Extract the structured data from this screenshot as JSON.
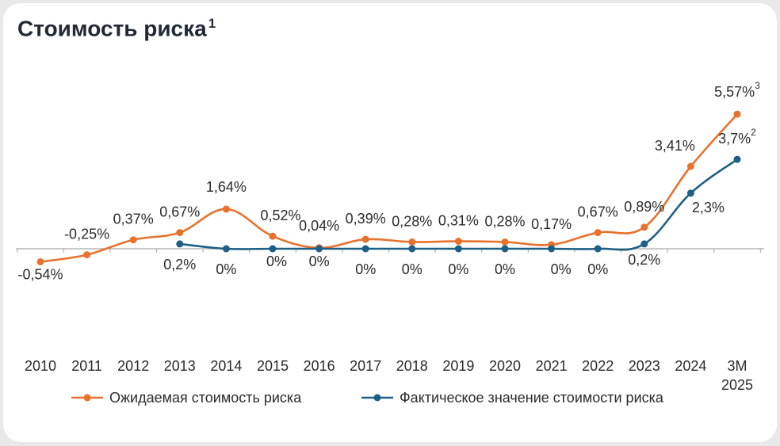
{
  "chart_data": {
    "type": "line",
    "title": "Стоимость риска",
    "title_footnote": "1",
    "categories": [
      "2010",
      "2011",
      "2012",
      "2013",
      "2014",
      "2015",
      "2016",
      "2017",
      "2018",
      "2019",
      "2020",
      "2021",
      "2022",
      "2023",
      "2024",
      "3М 2025"
    ],
    "ylim": [
      -0.6,
      5.8
    ],
    "series": [
      {
        "name": "Ожидаемая стоимость риска",
        "color": "#e8722c",
        "values": [
          -0.54,
          -0.25,
          0.37,
          0.67,
          1.64,
          0.52,
          0.04,
          0.39,
          0.28,
          0.31,
          0.28,
          0.17,
          0.67,
          0.89,
          3.41,
          5.57
        ],
        "labels": [
          "-0,54%",
          "-0,25%",
          "0,37%",
          "0,67%",
          "1,64%",
          "0,52%",
          "0,04%",
          "0,39%",
          "0,28%",
          "0,31%",
          "0,28%",
          "0,17%",
          "0,67%",
          "0,89%",
          "3,41%",
          "5,57%"
        ],
        "label_sup": {
          "15": "3"
        }
      },
      {
        "name": "Фактическое значение стоимости риска",
        "color": "#1e5f85",
        "values": [
          null,
          null,
          null,
          0.2,
          0,
          0,
          0,
          0,
          0,
          0,
          0,
          0,
          0,
          0.2,
          2.3,
          3.7
        ],
        "labels": [
          null,
          null,
          null,
          "0,2%",
          "0%",
          "0%",
          "0%",
          "0%",
          "0%",
          "0%",
          "0%",
          "0%",
          "0%",
          "0,2%",
          "2,3%",
          "3,7%"
        ],
        "label_sup": {
          "15": "2"
        }
      }
    ]
  }
}
